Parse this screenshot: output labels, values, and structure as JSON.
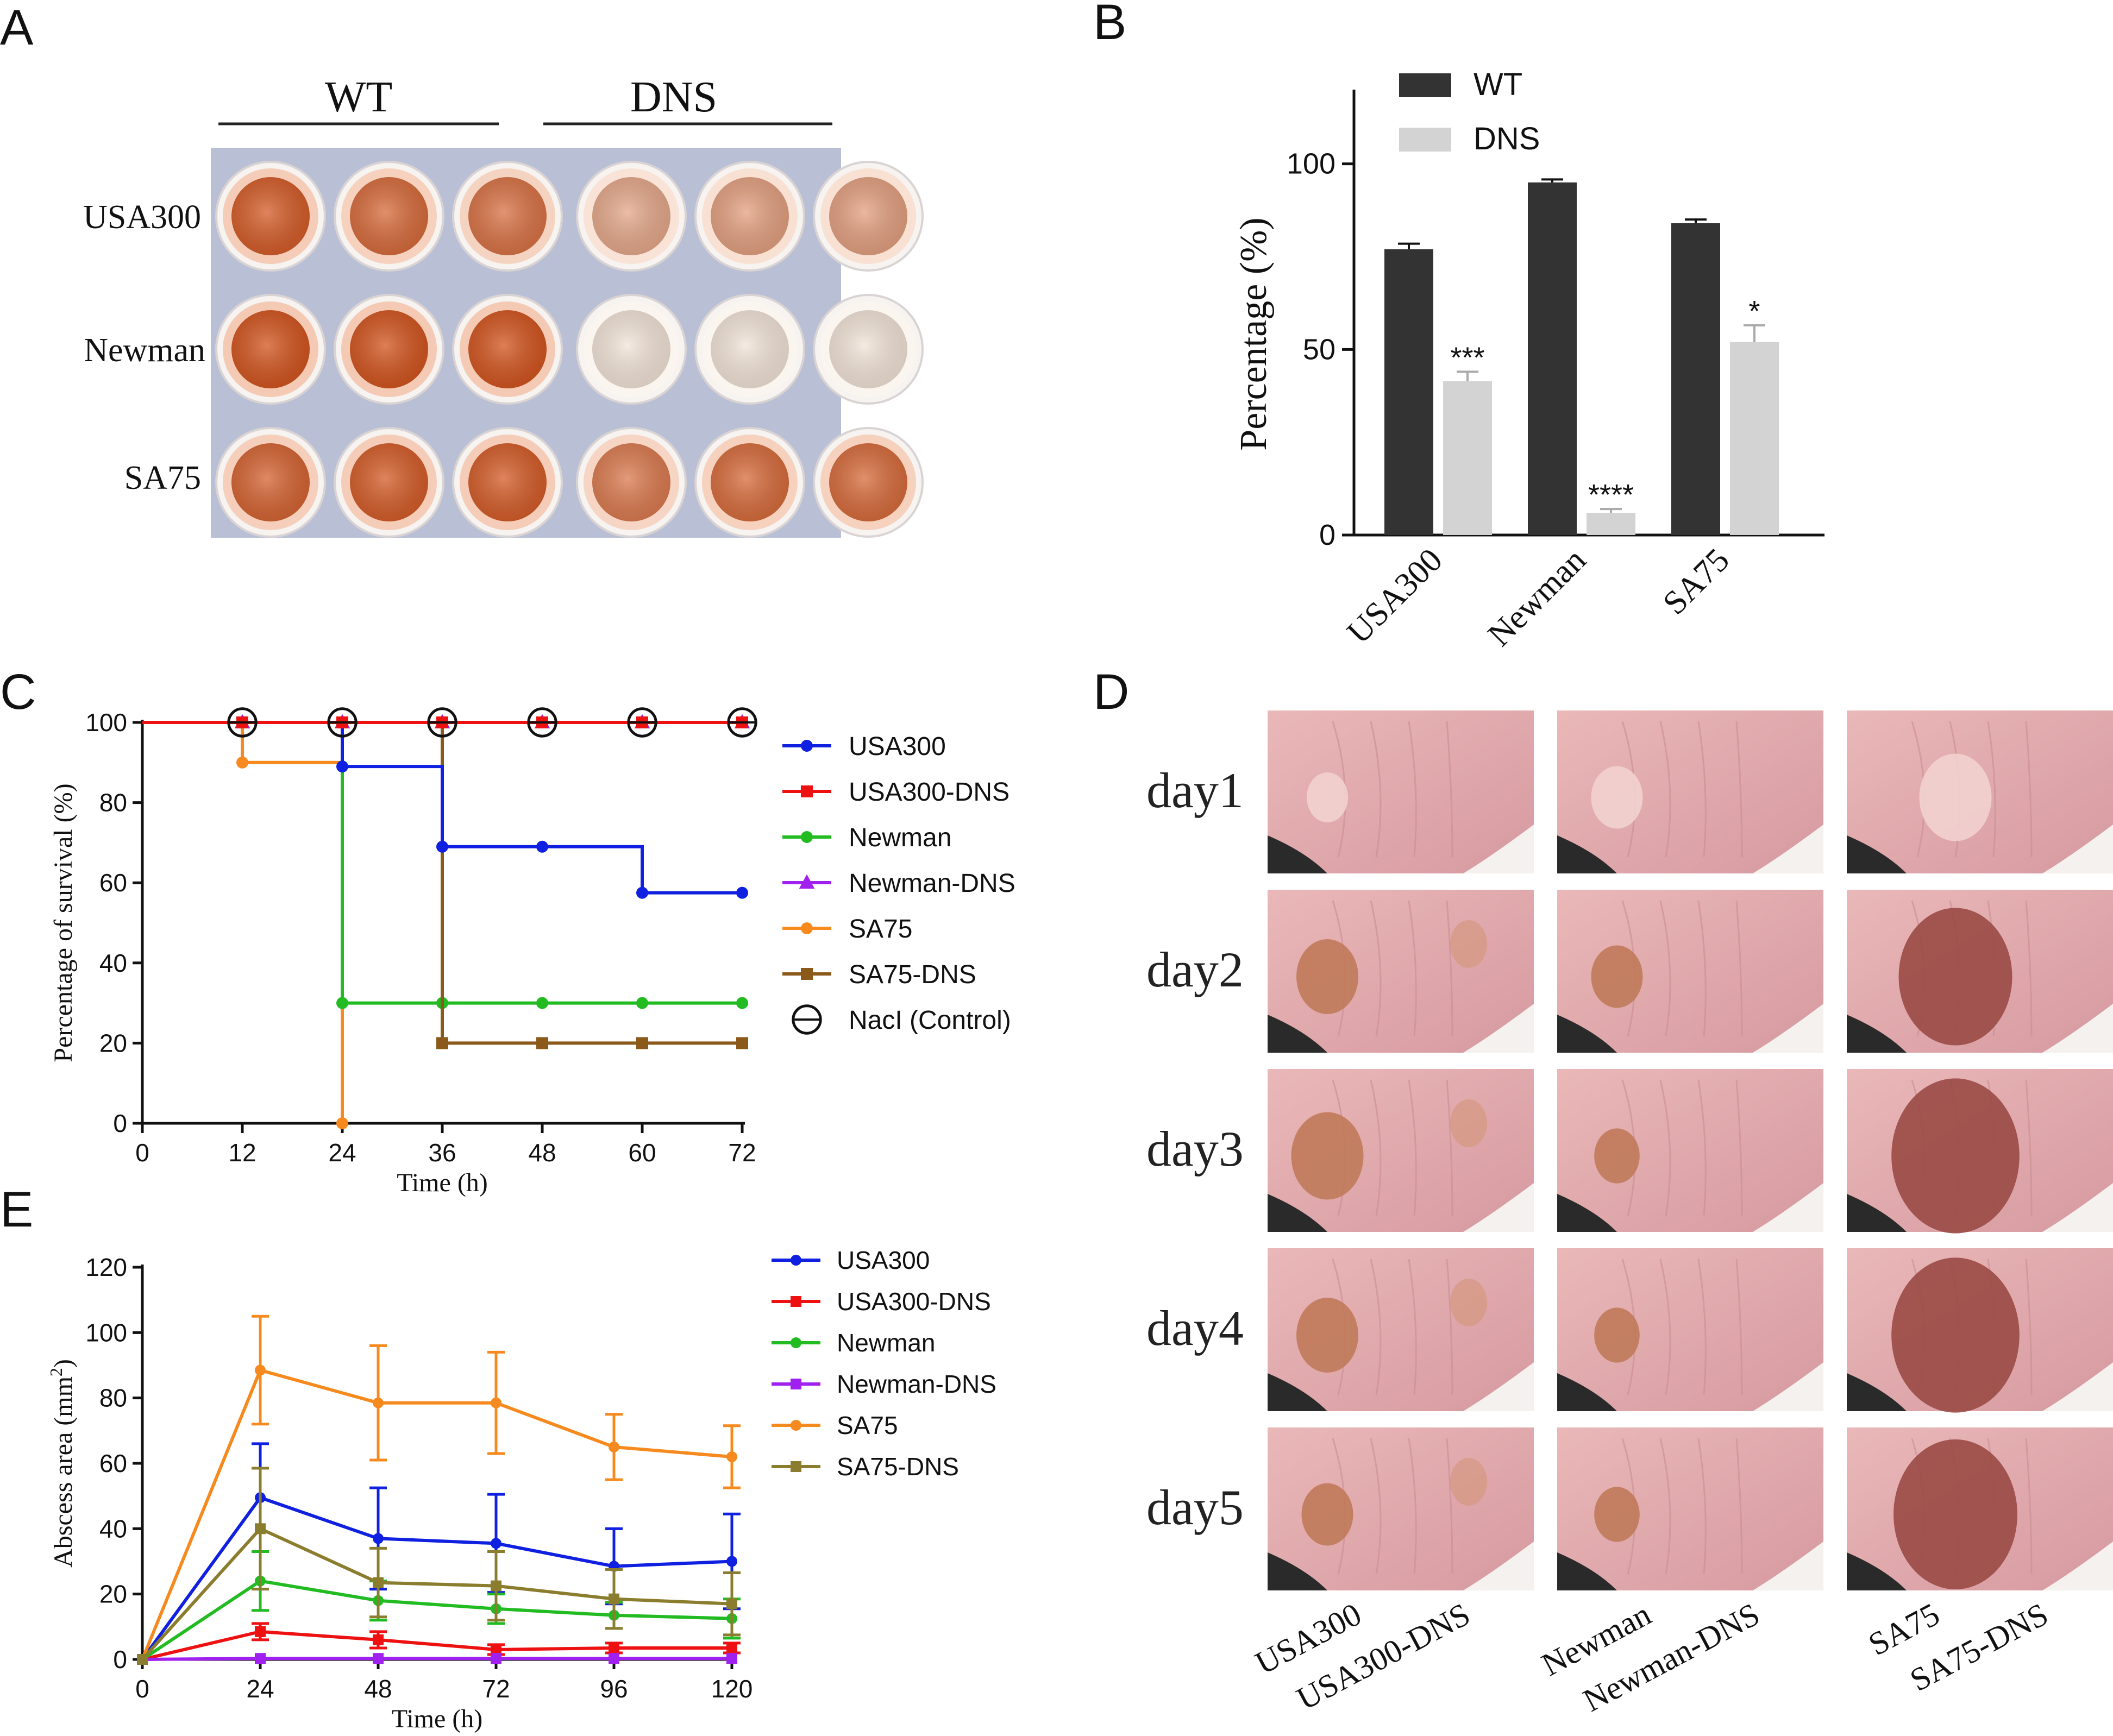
{
  "panel_labels": {
    "a": "A",
    "b": "B",
    "c": "C",
    "d": "D",
    "e": "E"
  },
  "colors": {
    "blue": "#1020e0",
    "red": "#ee1111",
    "green": "#22bb22",
    "purple": "#a020f0",
    "orange": "#f68a1e",
    "brown": "#8b5a1b",
    "olive": "#8b7d2e",
    "wt_bar": "#333333",
    "dns_bar": "#d3d3d3"
  },
  "panel_a": {
    "groups": [
      "WT",
      "DNS"
    ],
    "rows": [
      "USA300",
      "Newman",
      "SA75"
    ],
    "well_intensity": [
      [
        0.95,
        0.85,
        0.8,
        0.45,
        0.5,
        0.5
      ],
      [
        1.0,
        1.0,
        1.0,
        0.05,
        0.05,
        0.05
      ],
      [
        0.9,
        0.95,
        0.95,
        0.75,
        0.85,
        0.85
      ]
    ]
  },
  "chart_data": [
    {
      "id": "B",
      "type": "bar",
      "categories": [
        "USA300",
        "Newman",
        "SA75"
      ],
      "series": [
        {
          "name": "WT",
          "values": [
            77,
            95,
            84
          ],
          "errors": [
            1.5,
            0.8,
            1.0
          ]
        },
        {
          "name": "DNS",
          "values": [
            41.5,
            6,
            52
          ],
          "errors": [
            2.5,
            1.0,
            4.5
          ]
        }
      ],
      "significance": [
        "***",
        "****",
        "*"
      ],
      "ylabel": "Percentage (%)",
      "ylim": [
        0,
        120
      ],
      "yticks": [
        0,
        50,
        100
      ],
      "legend": "top-left"
    },
    {
      "id": "C",
      "type": "line",
      "step": true,
      "xlabel": "Time (h)",
      "ylabel": "Percentage of survival (%)",
      "xlim": [
        0,
        72
      ],
      "ylim": [
        0,
        100
      ],
      "xticks": [
        0,
        12,
        24,
        36,
        48,
        60,
        72
      ],
      "yticks": [
        0,
        20,
        40,
        60,
        80,
        100
      ],
      "legend": "right",
      "series": [
        {
          "name": "SA75",
          "color": "orange",
          "marker": "circle",
          "x": [
            0,
            12,
            24
          ],
          "y": [
            100,
            90,
            0
          ]
        },
        {
          "name": "Newman",
          "color": "green",
          "marker": "circle",
          "x": [
            0,
            24,
            36,
            48,
            60,
            72
          ],
          "y": [
            100,
            30,
            30,
            30,
            30,
            30
          ]
        },
        {
          "name": "SA75-DNS",
          "color": "brown",
          "marker": "square",
          "x": [
            0,
            24,
            36,
            48,
            60,
            72
          ],
          "y": [
            100,
            100,
            20,
            20,
            20,
            20
          ]
        },
        {
          "name": "USA300",
          "color": "blue",
          "marker": "circle",
          "x": [
            0,
            12,
            24,
            36,
            48,
            60,
            72
          ],
          "y": [
            100,
            100,
            89,
            69,
            69,
            57.5,
            57.5
          ]
        },
        {
          "name": "Newman-DNS",
          "color": "purple",
          "marker": "triangle",
          "x": [
            0,
            12,
            24,
            36,
            48,
            60,
            72
          ],
          "y": [
            100,
            100,
            100,
            100,
            100,
            100,
            100
          ]
        },
        {
          "name": "USA300-DNS",
          "color": "red",
          "marker": "square",
          "x": [
            0,
            12,
            24,
            36,
            48,
            60,
            72
          ],
          "y": [
            100,
            100,
            100,
            100,
            100,
            100,
            100
          ]
        },
        {
          "name": "NacI (Control)",
          "color": "black",
          "marker": "open-circle",
          "x": [
            12,
            24,
            36,
            48,
            60,
            72
          ],
          "y": [
            100,
            100,
            100,
            100,
            100,
            100
          ]
        }
      ],
      "legend_order": [
        "USA300",
        "USA300-DNS",
        "Newman",
        "Newman-DNS",
        "SA75",
        "SA75-DNS",
        "NacI (Control)"
      ]
    },
    {
      "id": "E",
      "type": "line",
      "xlabel": "Time (h)",
      "ylabel_prefix": "Abscess area (mm",
      "ylabel_sup": "2",
      "ylabel_suffix": ")",
      "xlim": [
        0,
        120
      ],
      "ylim": [
        0,
        120
      ],
      "xticks": [
        0,
        24,
        48,
        72,
        96,
        120
      ],
      "yticks": [
        0,
        20,
        40,
        60,
        80,
        100,
        120
      ],
      "legend": "right",
      "x": [
        0,
        24,
        48,
        72,
        96,
        120
      ],
      "series": [
        {
          "name": "USA300",
          "color": "blue",
          "marker": "circle",
          "values": [
            0,
            49.5,
            37,
            35.5,
            28.5,
            30
          ],
          "errors": [
            0,
            16.5,
            15.5,
            15,
            11.5,
            14.5
          ]
        },
        {
          "name": "USA300-DNS",
          "color": "red",
          "marker": "square",
          "values": [
            0,
            8.5,
            6,
            3,
            3.5,
            3.5
          ],
          "errors": [
            0,
            2.5,
            2.5,
            1.5,
            1.5,
            1.5
          ]
        },
        {
          "name": "Newman",
          "color": "green",
          "marker": "circle",
          "values": [
            0,
            24,
            18,
            15.5,
            13.5,
            12.5
          ],
          "errors": [
            0,
            9,
            6,
            4.5,
            4,
            6
          ]
        },
        {
          "name": "Newman-DNS",
          "color": "purple",
          "marker": "square",
          "values": [
            0,
            0.3,
            0.3,
            0.3,
            0.3,
            0.3
          ],
          "errors": [
            0,
            0,
            0,
            0,
            0,
            0
          ]
        },
        {
          "name": "SA75",
          "color": "orange",
          "marker": "circle",
          "values": [
            0,
            88.5,
            78.5,
            78.5,
            65,
            62
          ],
          "errors": [
            0,
            16.5,
            17.5,
            15.5,
            10,
            9.5
          ]
        },
        {
          "name": "SA75-DNS",
          "color": "olive",
          "marker": "square",
          "values": [
            0,
            40,
            23.5,
            22.5,
            18.5,
            17
          ],
          "errors": [
            0,
            18.5,
            10.5,
            10.5,
            9,
            9.5
          ]
        }
      ]
    }
  ],
  "panel_d": {
    "days": [
      "day1",
      "day2",
      "day3",
      "day4",
      "day5"
    ],
    "columns": [
      "USA300",
      "USA300-DNS",
      "Newman",
      "Newman-DNS",
      "SA75",
      "SA75-DNS"
    ],
    "lesion_size": [
      [
        0.2,
        0.25,
        0.35
      ],
      [
        0.3,
        0.25,
        0.55
      ],
      [
        0.35,
        0.22,
        0.62
      ],
      [
        0.3,
        0.22,
        0.62
      ],
      [
        0.25,
        0.22,
        0.6
      ]
    ]
  }
}
